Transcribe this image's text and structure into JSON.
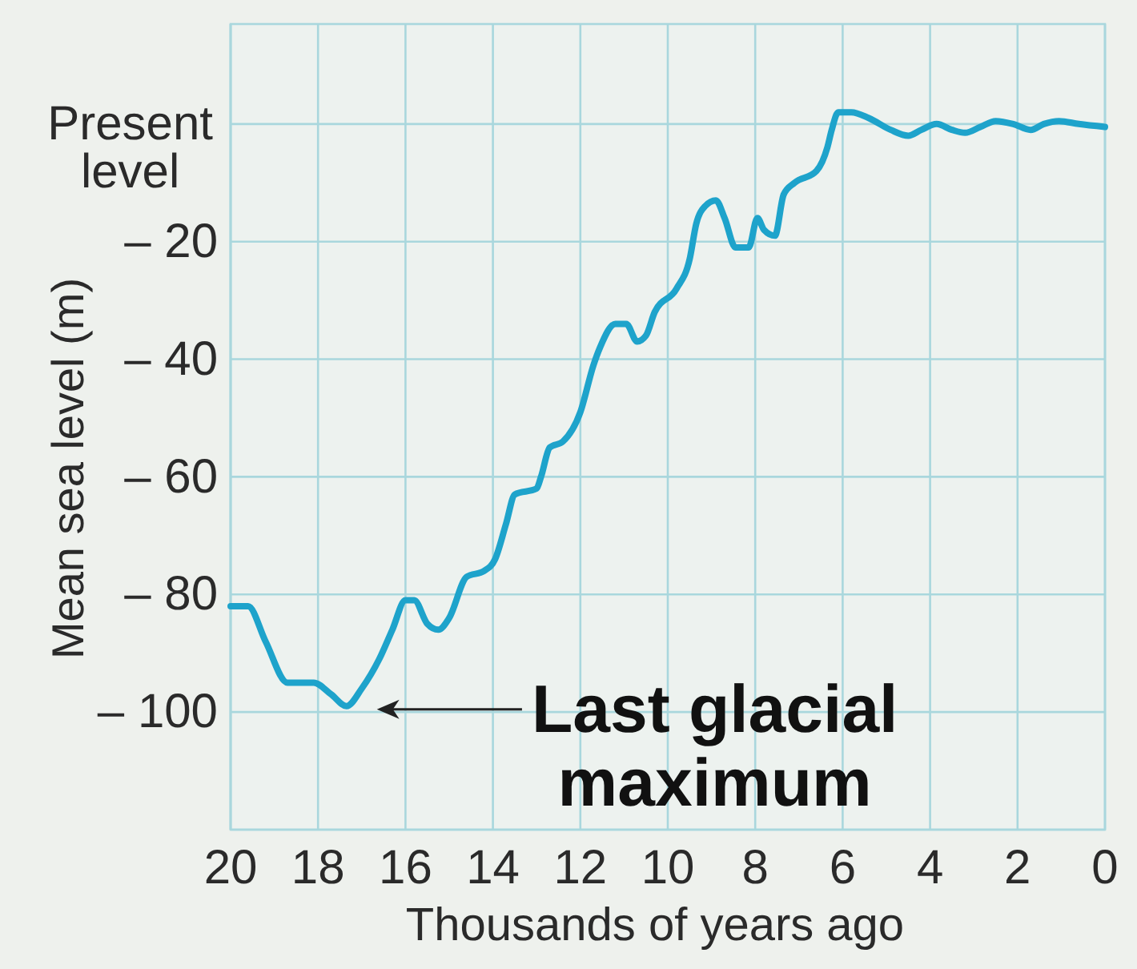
{
  "chart_data": {
    "type": "line",
    "xlabel": "Thousands of years ago",
    "ylabel": "Mean sea level (m)",
    "x": [
      20,
      19.6,
      19.2,
      18.7,
      18.1,
      17.7,
      17.35,
      17.0,
      16.6,
      16.3,
      16.0,
      15.8,
      15.5,
      15.25,
      15.0,
      14.6,
      14.2,
      13.95,
      13.7,
      13.5,
      13.0,
      12.9,
      12.7,
      12.4,
      12.0,
      11.7,
      11.55,
      11.2,
      10.95,
      10.7,
      10.5,
      10.3,
      9.8,
      9.5,
      9.35,
      9.15,
      8.9,
      8.7,
      8.45,
      8.15,
      7.95,
      7.8,
      7.55,
      7.35,
      7.1,
      6.6,
      6.35,
      6.25,
      6.1,
      5.8,
      5.4,
      4.9,
      4.5,
      4.2,
      3.85,
      3.5,
      3.2,
      2.85,
      2.5,
      2.1,
      1.7,
      1.4,
      1.05,
      0.6,
      0
    ],
    "values": [
      -82,
      -82,
      -88,
      -95,
      -95,
      -97,
      -99,
      -96,
      -91,
      -86,
      -81,
      -81,
      -85,
      -86,
      -84,
      -77,
      -76,
      -74,
      -68,
      -63,
      -62,
      -60,
      -55,
      -54,
      -49,
      -41,
      -38,
      -34,
      -34,
      -37,
      -36,
      -32,
      -28,
      -23,
      -17,
      -14,
      -13,
      -16,
      -21,
      -21,
      -16,
      -18,
      -19,
      -12,
      -10,
      -8,
      -4,
      -1,
      2,
      2,
      1,
      -1,
      -2,
      -1,
      0,
      -1,
      -1.5,
      -0.5,
      0.5,
      0,
      -1,
      0,
      0.5,
      0,
      -0.5
    ],
    "color": "#1ea3cb",
    "xlim": [
      20,
      0
    ],
    "ylim": [
      -120,
      17
    ],
    "xticks": [
      20,
      18,
      16,
      14,
      12,
      10,
      8,
      6,
      4,
      2,
      0
    ],
    "yticks": [
      {
        "value": 0,
        "label": "Present level"
      },
      {
        "value": -20,
        "label": "– 20"
      },
      {
        "value": -40,
        "label": "– 40"
      },
      {
        "value": -60,
        "label": "– 60"
      },
      {
        "value": -80,
        "label": "– 80"
      },
      {
        "value": -100,
        "label": "– 100"
      }
    ],
    "grid": true,
    "annotations": [
      {
        "text": "Last glacial maximum",
        "x": 17.35,
        "y": -99
      }
    ]
  }
}
